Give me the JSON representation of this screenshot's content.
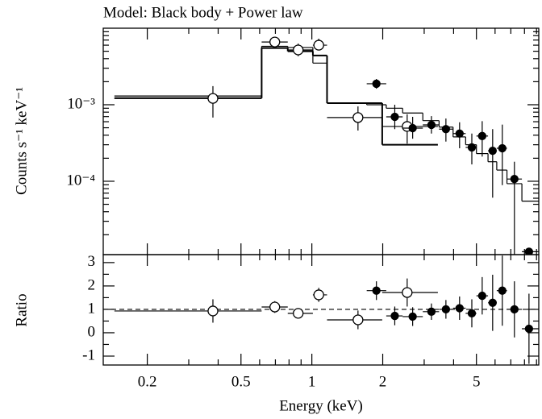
{
  "chart_data": [
    {
      "type": "scatter",
      "title": "Model: Black body + Power law",
      "ylabel": "Counts s⁻¹ keV⁻¹",
      "log_x": true,
      "log_y": true,
      "xlim": [
        0.13,
        9.2
      ],
      "ylim": [
        1.1e-05,
        0.01
      ],
      "yticks": [
        {
          "value": 0.001,
          "label": "10⁻³"
        },
        {
          "value": 0.0001,
          "label": "10⁻⁴"
        }
      ],
      "yminorticks": [
        2e-05,
        3e-05,
        4e-05,
        5e-05,
        6e-05,
        7e-05,
        8e-05,
        9e-05,
        0.0002,
        0.0003,
        0.0004,
        0.0005,
        0.0006,
        0.0007,
        0.0008,
        0.0009,
        0.002,
        0.003,
        0.004,
        0.005,
        0.006,
        0.007,
        0.008,
        0.009
      ],
      "series": [
        {
          "marker": "open",
          "color": "#000000",
          "x": [
            0.38,
            0.696,
            0.875,
            1.07,
            1.57,
            2.54
          ],
          "x_low": [
            0.145,
            0.612,
            0.79,
            1.01,
            1.16,
            1.99
          ],
          "x_high": [
            0.612,
            0.79,
            1.01,
            1.16,
            1.99,
            3.43
          ],
          "values": [
            0.00121,
            0.0066,
            0.0052,
            0.006,
            0.00068,
            0.00052
          ],
          "err_low": [
            0.00068,
            0.0057,
            0.0043,
            0.0052,
            0.00046,
            0.00031
          ],
          "err_high": [
            0.00175,
            0.0077,
            0.0063,
            0.0073,
            0.00095,
            0.00075
          ]
        },
        {
          "marker": "filled",
          "color": "#000000",
          "x": [
            1.88,
            2.25,
            2.68,
            3.22,
            3.71,
            4.24,
            4.78,
            5.29,
            5.86,
            6.44,
            7.25,
            8.36
          ],
          "x_low": [
            1.71,
            2.07,
            2.43,
            2.96,
            3.47,
            3.98,
            4.5,
            5.0,
            5.6,
            6.1,
            6.74,
            7.8
          ],
          "x_high": [
            2.07,
            2.43,
            2.96,
            3.47,
            3.98,
            4.5,
            5.0,
            5.6,
            6.1,
            6.74,
            7.8,
            9.2
          ],
          "values": [
            0.00188,
            0.000695,
            0.000495,
            0.000545,
            0.00048,
            0.00042,
            0.000277,
            0.00039,
            0.00025,
            0.00027,
            0.000107,
            1.2e-05
          ],
          "err_low": [
            0.00162,
            0.00048,
            0.00036,
            0.00042,
            0.00033,
            0.00027,
            0.000166,
            0.00021,
            6.1e-05,
            8.9e-05,
            1.1e-05,
            1.1e-05
          ],
          "err_high": [
            0.00217,
            0.001,
            0.000695,
            0.00071,
            0.00066,
            0.00059,
            0.00042,
            0.00061,
            0.00048,
            0.00055,
            0.00018,
            1.3e-05
          ]
        }
      ],
      "models": [
        {
          "width": 2,
          "edges": [
            0.145,
            0.612,
            0.79,
            1.01,
            1.16,
            1.99,
            3.43
          ],
          "values": [
            0.00122,
            0.0055,
            0.005,
            0.0044,
            0.00105,
            0.0003
          ]
        },
        {
          "width": 1.2,
          "edges": [
            0.145,
            0.612,
            0.79,
            1.01,
            1.16,
            1.71,
            2.07,
            2.43,
            2.96,
            3.47,
            3.98,
            4.5,
            5.0,
            5.6,
            6.1,
            6.74,
            7.8,
            9.2
          ],
          "values": [
            0.0013,
            0.0058,
            0.0056,
            0.0035,
            0.00105,
            0.001,
            0.0009,
            0.00078,
            0.00062,
            0.00051,
            0.00038,
            0.0003,
            0.00023,
            0.00018,
            0.00014,
            9.3e-05,
            5.5e-05
          ]
        }
      ]
    },
    {
      "type": "scatter",
      "xlabel": "Energy (keV)",
      "ylabel": "Ratio",
      "log_x": true,
      "xlim": [
        0.13,
        9.2
      ],
      "xticks": [
        0.2,
        0.5,
        1,
        2,
        5
      ],
      "xminorticks": [
        0.3,
        0.4,
        0.6,
        0.7,
        0.8,
        0.9,
        3,
        4,
        6,
        7,
        8,
        9
      ],
      "ylim": [
        -1.38,
        3.34
      ],
      "yticks": [
        -1,
        0,
        1,
        2,
        3
      ],
      "yminorticks": [
        -0.5,
        0.5,
        1.5,
        2.5
      ],
      "reference_line": 1,
      "series": [
        {
          "marker": "open",
          "values": [
            0.93,
            1.1,
            0.83,
            1.62,
            0.55,
            1.72
          ],
          "errors": [
            0.5,
            0.25,
            0.2,
            0.3,
            0.4,
            0.6
          ]
        },
        {
          "marker": "filled",
          "values": [
            1.8,
            0.72,
            0.69,
            0.9,
            1.0,
            1.05,
            0.83,
            1.58,
            1.28,
            1.8,
            1.0,
            0.17
          ],
          "errors": [
            0.4,
            0.4,
            0.4,
            0.35,
            0.4,
            0.5,
            0.6,
            0.8,
            1.2,
            1.5,
            1.2,
            1.5
          ]
        }
      ]
    }
  ]
}
